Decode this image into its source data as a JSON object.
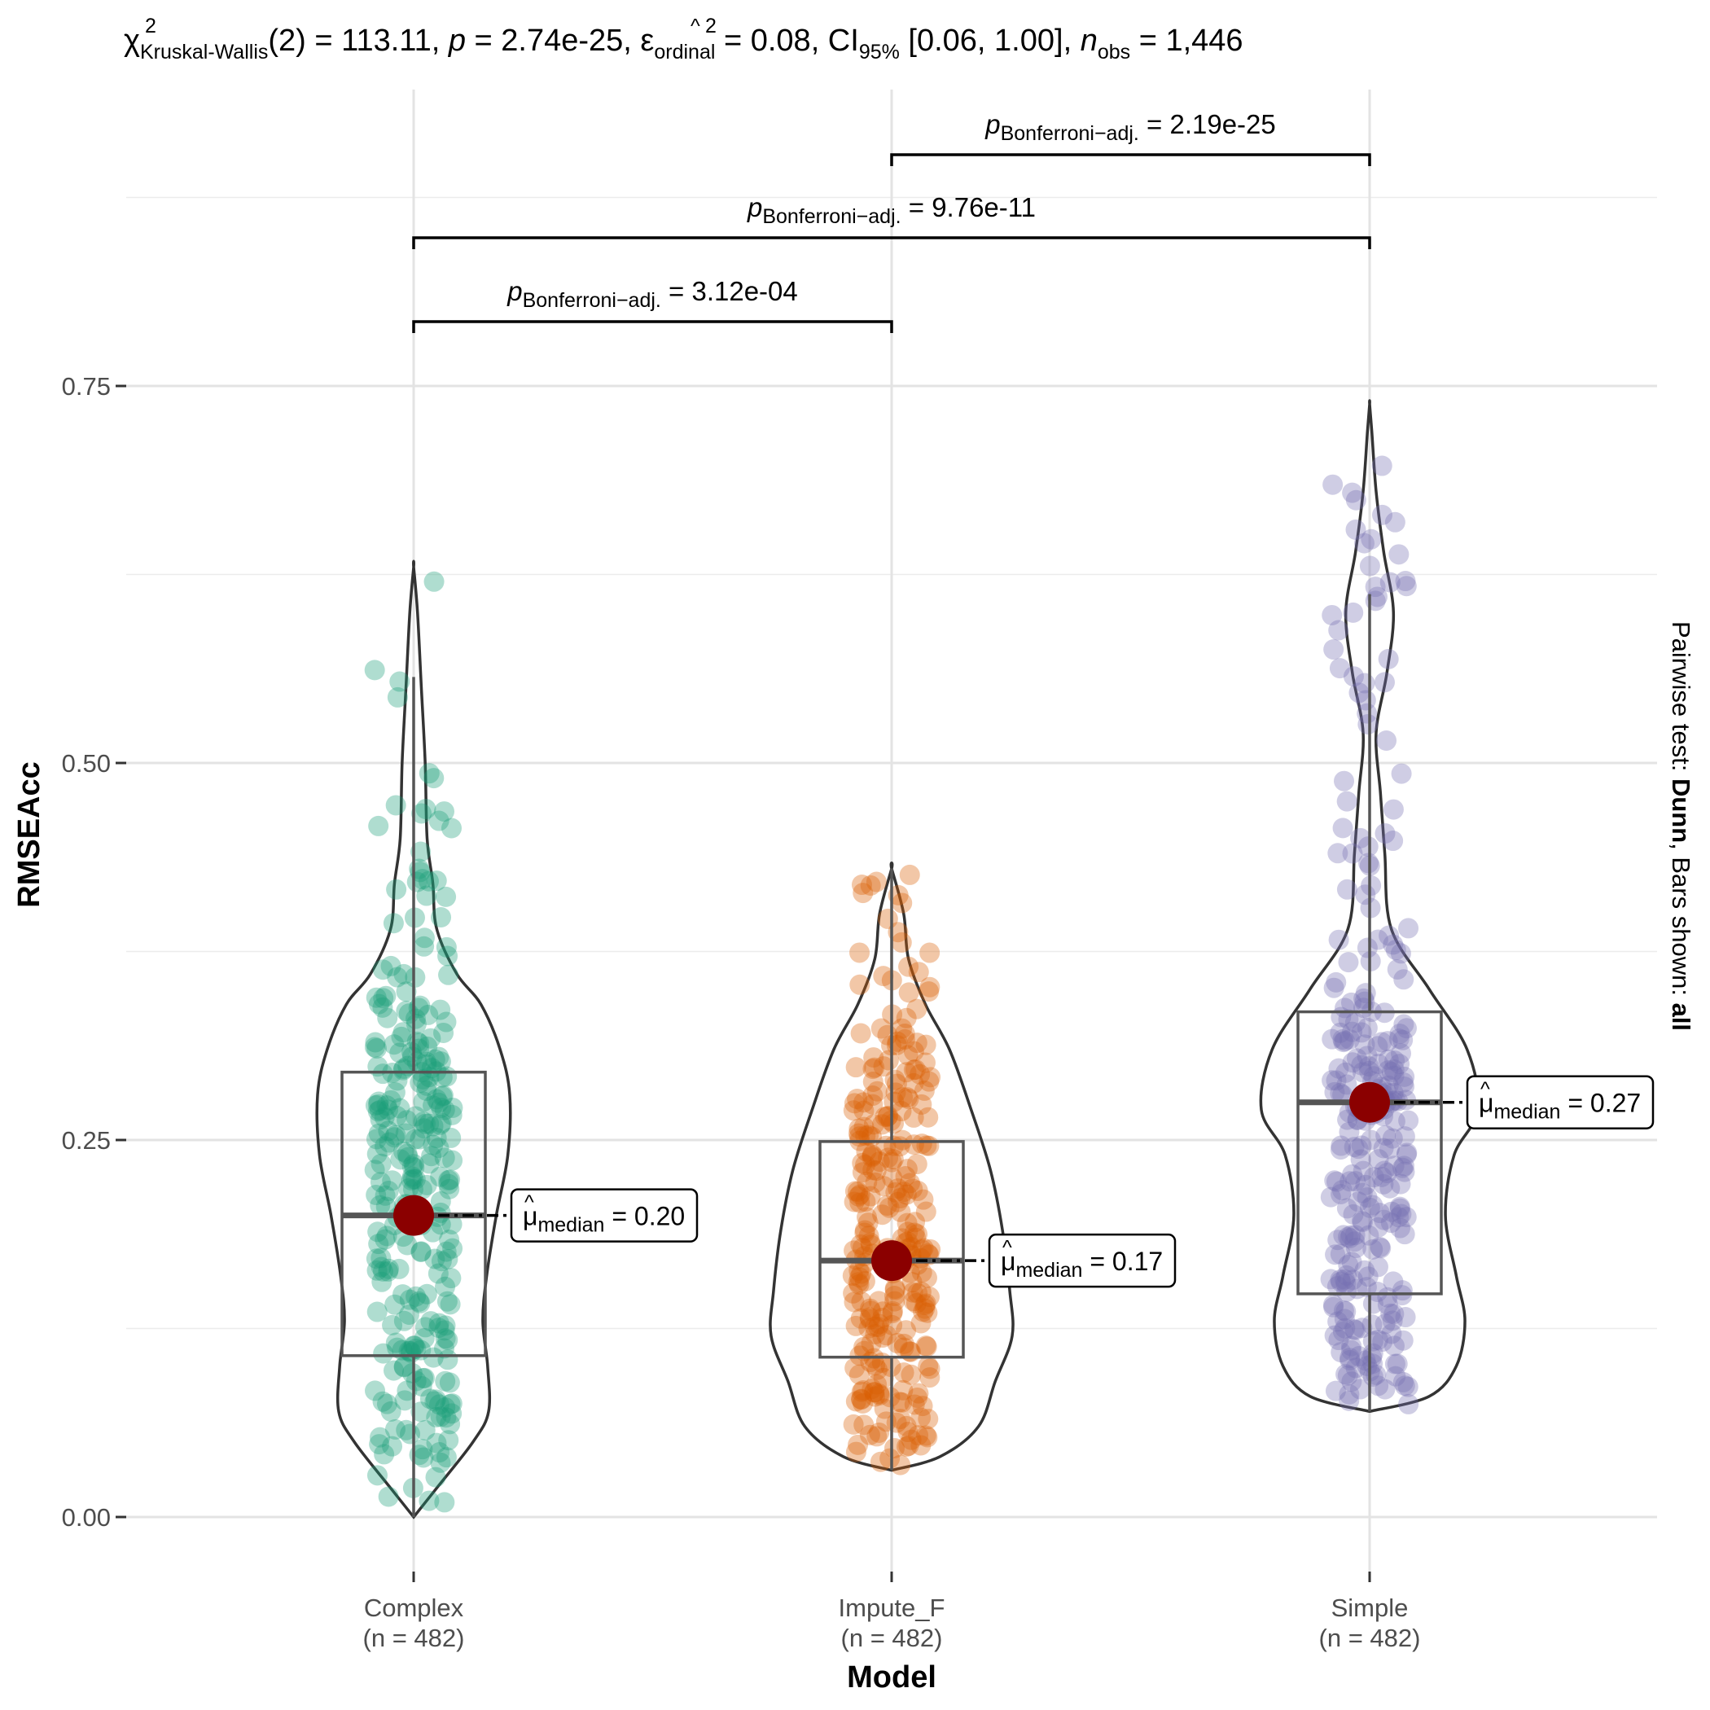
{
  "chart_data": {
    "type": "violin-box-scatter",
    "title": {
      "chi": "χ",
      "chi_sup": "2",
      "chi_sub": "Kruskal-Wallis",
      "df": "(2) = 113.11, ",
      "p_sym": "p",
      "p_val": " = 2.74e-25, ",
      "eps": "ε",
      "eps_sup": "2",
      "eps_sub": "ordinal",
      "eps_val": " = 0.08, CI",
      "ci_sub": "95%",
      "ci_val": " [0.06, 1.00], ",
      "n_sym": "n",
      "n_sub": "obs",
      "n_val": " = 1,446"
    },
    "xlabel": "Model",
    "ylabel": "RMSEAcc",
    "ylim": [
      -0.045,
      0.965
    ],
    "yticks": [
      {
        "value": 0.0,
        "label": "0.00"
      },
      {
        "value": 0.25,
        "label": "0.25"
      },
      {
        "value": 0.5,
        "label": "0.50"
      },
      {
        "value": 0.75,
        "label": "0.75"
      }
    ],
    "minor_grid": [
      0.125,
      0.375,
      0.625,
      0.875
    ],
    "grid": true,
    "groups": [
      {
        "name": "Complex",
        "n_label": "(n = 482)",
        "n": 482,
        "color": "#1b9e77",
        "q1": 0.107,
        "median": 0.2,
        "q3": 0.295,
        "whisker_low": 0.0,
        "whisker_high": 0.557,
        "min": 0.0,
        "max": 0.63,
        "median_label": {
          "mu": "μ",
          "sub": "median",
          "val": " = 0.20"
        }
      },
      {
        "name": "Impute_F",
        "n_label": "(n = 482)",
        "n": 482,
        "color": "#d95f02",
        "q1": 0.106,
        "median": 0.17,
        "q3": 0.249,
        "whisker_low": 0.031,
        "whisker_high": 0.43,
        "min": 0.031,
        "max": 0.43,
        "median_label": {
          "mu": "μ",
          "sub": "median",
          "val": " = 0.17"
        }
      },
      {
        "name": "Simple",
        "n_label": "(n = 482)",
        "n": 482,
        "color": "#7570b3",
        "q1": 0.148,
        "median": 0.275,
        "q3": 0.335,
        "whisker_low": 0.07,
        "whisker_high": 0.612,
        "min": 0.07,
        "max": 0.738,
        "median_label": {
          "mu": "μ",
          "sub": "median",
          "val": " = 0.27"
        }
      }
    ],
    "pairwise": [
      {
        "from": "Complex",
        "to": "Impute_F",
        "p_sym": "p",
        "p_sub": "Bonferroni−adj.",
        "p_val": " = 3.12e-04"
      },
      {
        "from": "Complex",
        "to": "Simple",
        "p_sym": "p",
        "p_sub": "Bonferroni−adj.",
        "p_val": " = 9.76e-11"
      },
      {
        "from": "Impute_F",
        "to": "Simple",
        "p_sym": "p",
        "p_sub": "Bonferroni−adj.",
        "p_val": " = 2.19e-25"
      }
    ],
    "caption": {
      "pre": "Pairwise test: ",
      "test": "Dunn",
      "mid": ", Bars shown: ",
      "bars": "all"
    }
  }
}
